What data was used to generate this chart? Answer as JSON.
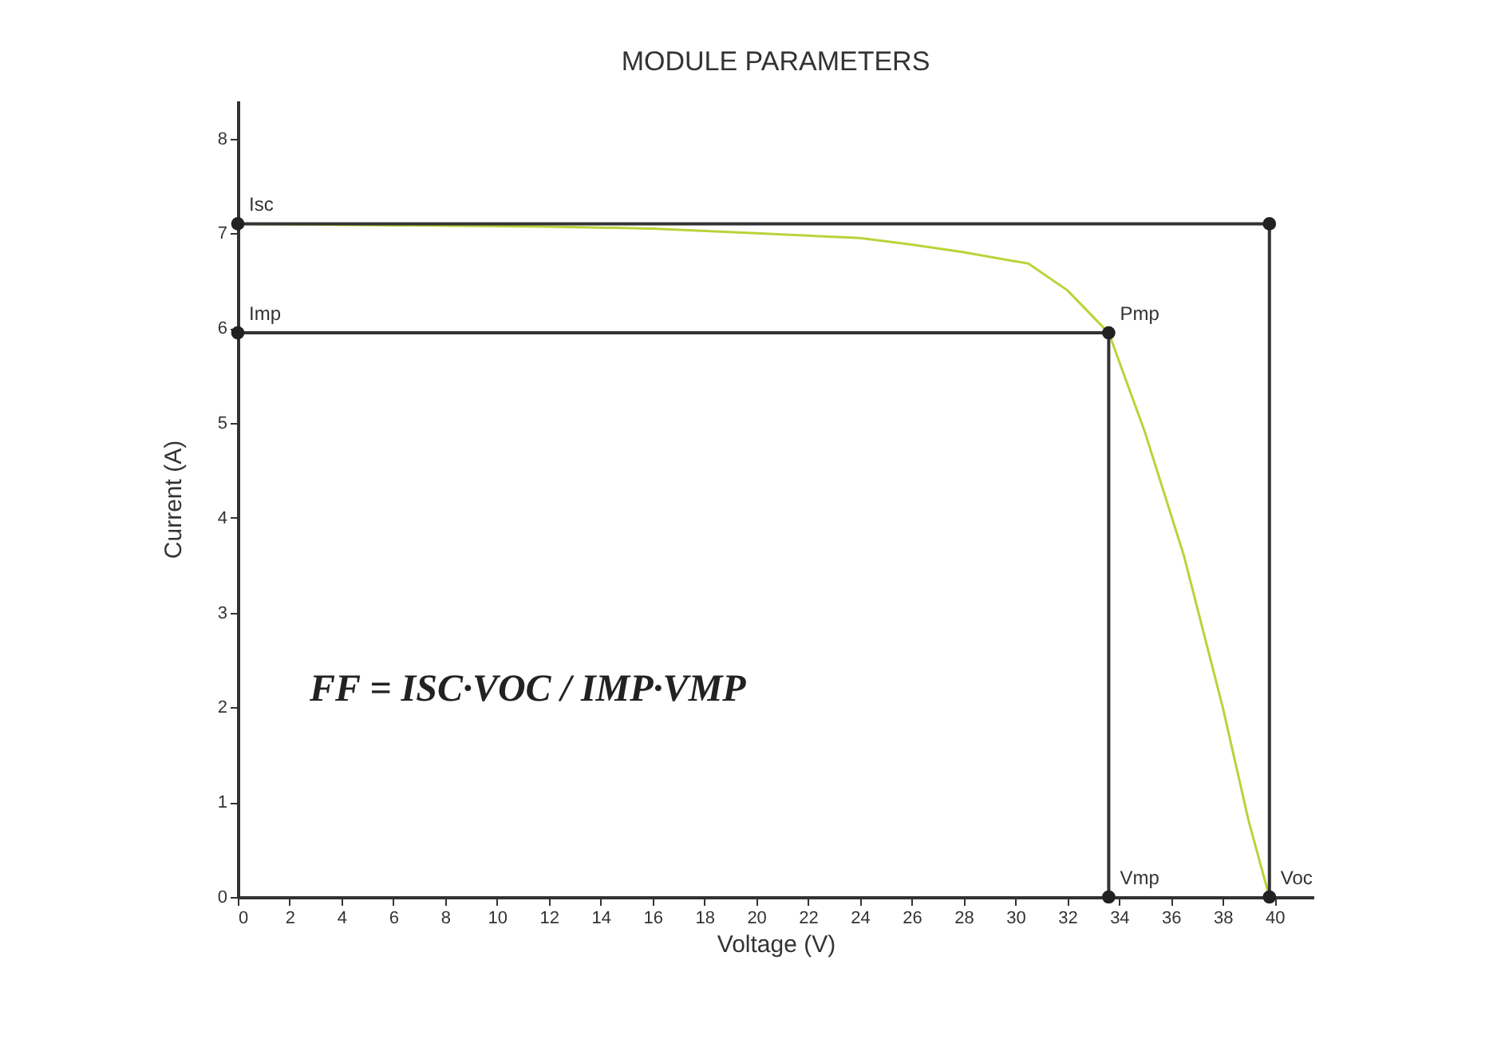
{
  "chart_data": {
    "type": "line",
    "title": "MODULE PARAMETERS",
    "xlabel": "Voltage (V)",
    "ylabel": "Current (A)",
    "xlim": [
      0,
      41.5
    ],
    "xticks": [
      0,
      2,
      4,
      6,
      8,
      10,
      12,
      14,
      16,
      18,
      20,
      22,
      24,
      26,
      28,
      30,
      32,
      34,
      36,
      38,
      40
    ],
    "ylim": [
      0,
      8.4
    ],
    "yticks": [
      0,
      1,
      2,
      3,
      4,
      5,
      6,
      7,
      8
    ],
    "grid": false,
    "series": [
      {
        "color": "#b8d43a",
        "x": [
          0,
          4,
          8,
          12,
          16,
          20,
          24,
          26,
          28,
          30.5,
          32,
          33.6,
          35,
          36.5,
          38,
          39,
          39.8
        ],
        "values": [
          7.1,
          7.09,
          7.08,
          7.07,
          7.05,
          7.0,
          6.95,
          6.88,
          6.8,
          6.68,
          6.4,
          5.95,
          4.9,
          3.6,
          2.0,
          0.8,
          0.0
        ]
      },
      {
        "color": "#333333",
        "x": [
          0,
          39.8,
          39.8
        ],
        "values": [
          7.1,
          7.1,
          0
        ]
      },
      {
        "color": "#333333",
        "x": [
          0,
          33.6,
          33.6
        ],
        "values": [
          5.95,
          5.95,
          0
        ]
      },
      {
        "type": "scatter",
        "color": "#222222",
        "marker": "circle",
        "x": [
          0,
          39.8,
          0,
          33.6,
          33.6,
          39.8
        ],
        "values": [
          7.1,
          7.1,
          5.95,
          5.95,
          0,
          0
        ]
      }
    ],
    "annotations": [
      {
        "text": "Isc",
        "x": 0,
        "y": 7.1
      },
      {
        "text": "Imp",
        "x": 0,
        "y": 5.95
      },
      {
        "text": "Pmp",
        "x": 33.6,
        "y": 5.95
      },
      {
        "text": "Vmp",
        "x": 33.6,
        "y": 0
      },
      {
        "text": "Voc",
        "x": 39.8,
        "y": 0
      },
      "FF = ISC·VOC / IMP·VMP"
    ]
  }
}
